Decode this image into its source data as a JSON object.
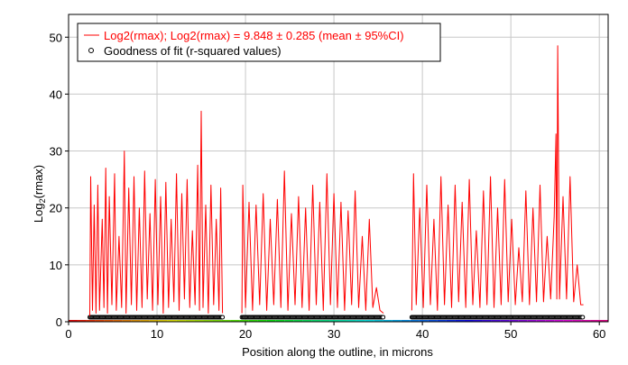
{
  "chart_data": {
    "type": "line",
    "xlabel": "Position along the outline, in microns",
    "ylabel_main": "Log",
    "ylabel_sub": "2",
    "ylabel_tail": "(rmax)",
    "xlim": [
      0,
      61
    ],
    "ylim": [
      0,
      54
    ],
    "xticks": [
      0,
      10,
      20,
      30,
      40,
      50,
      60
    ],
    "yticks": [
      0,
      10,
      20,
      30,
      40,
      50
    ],
    "grid": true,
    "legend_position": "top-left",
    "legend": [
      {
        "label": "Log2(rmax); Log2(rmax) = 9.848 ± 0.285 (mean ± 95%CI)",
        "marker": "line",
        "color": "#ff0000"
      },
      {
        "label": "Goodness of fit (r-squared values)",
        "marker": "open-circle",
        "color": "#000000"
      }
    ],
    "segments": [
      [
        2.4,
        17.4
      ],
      [
        19.6,
        35.6
      ],
      [
        38.8,
        58.2
      ]
    ],
    "gof_value": 0.8,
    "series": [
      {
        "name": "Log2(rmax); Log2(rmax) = 9.848 ± 0.285 (mean ± 95%CI)",
        "color": "#ff0000",
        "points": [
          [
            2.4,
            1.0
          ],
          [
            2.5,
            25.5
          ],
          [
            2.7,
            2.0
          ],
          [
            2.9,
            20.5
          ],
          [
            3.1,
            1.5
          ],
          [
            3.3,
            24.0
          ],
          [
            3.5,
            2.0
          ],
          [
            3.8,
            18.0
          ],
          [
            4.0,
            2.5
          ],
          [
            4.2,
            27.0
          ],
          [
            4.4,
            1.5
          ],
          [
            4.6,
            22.0
          ],
          [
            4.9,
            3.0
          ],
          [
            5.2,
            26.0
          ],
          [
            5.4,
            2.0
          ],
          [
            5.7,
            15.0
          ],
          [
            6.0,
            2.5
          ],
          [
            6.3,
            30.0
          ],
          [
            6.5,
            1.5
          ],
          [
            6.8,
            23.5
          ],
          [
            7.1,
            3.0
          ],
          [
            7.4,
            25.5
          ],
          [
            7.7,
            2.0
          ],
          [
            8.0,
            20.0
          ],
          [
            8.3,
            2.5
          ],
          [
            8.6,
            26.5
          ],
          [
            8.9,
            4.0
          ],
          [
            9.2,
            19.0
          ],
          [
            9.5,
            2.0
          ],
          [
            9.8,
            25.0
          ],
          [
            10.1,
            3.0
          ],
          [
            10.4,
            22.0
          ],
          [
            10.7,
            1.5
          ],
          [
            11.0,
            24.5
          ],
          [
            11.3,
            2.5
          ],
          [
            11.6,
            18.0
          ],
          [
            11.9,
            3.5
          ],
          [
            12.2,
            26.0
          ],
          [
            12.5,
            2.0
          ],
          [
            12.8,
            22.5
          ],
          [
            13.1,
            4.0
          ],
          [
            13.4,
            25.0
          ],
          [
            13.7,
            2.5
          ],
          [
            14.0,
            16.0
          ],
          [
            14.3,
            3.0
          ],
          [
            14.6,
            27.5
          ],
          [
            14.8,
            2.0
          ],
          [
            15.0,
            37.0
          ],
          [
            15.2,
            2.5
          ],
          [
            15.5,
            20.5
          ],
          [
            15.8,
            1.5
          ],
          [
            16.1,
            24.0
          ],
          [
            16.4,
            3.0
          ],
          [
            16.7,
            18.0
          ],
          [
            17.0,
            2.0
          ],
          [
            17.2,
            23.5
          ],
          [
            17.4,
            1.5
          ],
          [
            19.6,
            1.5
          ],
          [
            19.7,
            24.0
          ],
          [
            20.0,
            2.5
          ],
          [
            20.4,
            21.0
          ],
          [
            20.8,
            2.0
          ],
          [
            21.2,
            20.5
          ],
          [
            21.6,
            3.0
          ],
          [
            22.0,
            22.5
          ],
          [
            22.4,
            2.0
          ],
          [
            22.8,
            18.0
          ],
          [
            23.2,
            3.0
          ],
          [
            23.6,
            21.5
          ],
          [
            24.0,
            2.5
          ],
          [
            24.4,
            26.5
          ],
          [
            24.8,
            2.0
          ],
          [
            25.2,
            19.0
          ],
          [
            25.6,
            3.0
          ],
          [
            26.0,
            22.0
          ],
          [
            26.4,
            2.5
          ],
          [
            26.8,
            20.0
          ],
          [
            27.2,
            2.0
          ],
          [
            27.6,
            24.0
          ],
          [
            28.0,
            3.0
          ],
          [
            28.4,
            21.0
          ],
          [
            28.8,
            2.0
          ],
          [
            29.2,
            26.0
          ],
          [
            29.6,
            3.0
          ],
          [
            30.0,
            22.5
          ],
          [
            30.4,
            2.5
          ],
          [
            30.8,
            21.0
          ],
          [
            31.2,
            2.0
          ],
          [
            31.6,
            19.5
          ],
          [
            32.0,
            3.0
          ],
          [
            32.4,
            23.0
          ],
          [
            32.8,
            2.5
          ],
          [
            33.2,
            15.0
          ],
          [
            33.6,
            2.0
          ],
          [
            34.0,
            18.0
          ],
          [
            34.4,
            2.5
          ],
          [
            34.8,
            6.0
          ],
          [
            35.2,
            2.0
          ],
          [
            35.6,
            1.5
          ],
          [
            38.8,
            2.0
          ],
          [
            39.0,
            26.0
          ],
          [
            39.3,
            3.0
          ],
          [
            39.7,
            20.0
          ],
          [
            40.1,
            2.5
          ],
          [
            40.5,
            24.0
          ],
          [
            40.9,
            3.0
          ],
          [
            41.3,
            18.0
          ],
          [
            41.7,
            2.0
          ],
          [
            42.1,
            25.5
          ],
          [
            42.5,
            3.0
          ],
          [
            42.9,
            20.5
          ],
          [
            43.3,
            2.5
          ],
          [
            43.7,
            24.0
          ],
          [
            44.1,
            3.5
          ],
          [
            44.5,
            21.0
          ],
          [
            44.9,
            2.5
          ],
          [
            45.3,
            25.0
          ],
          [
            45.7,
            3.0
          ],
          [
            46.1,
            16.0
          ],
          [
            46.5,
            2.5
          ],
          [
            46.9,
            23.0
          ],
          [
            47.3,
            3.0
          ],
          [
            47.7,
            25.5
          ],
          [
            48.1,
            2.5
          ],
          [
            48.5,
            20.0
          ],
          [
            48.9,
            3.0
          ],
          [
            49.3,
            25.0
          ],
          [
            49.7,
            3.5
          ],
          [
            50.1,
            18.0
          ],
          [
            50.5,
            3.0
          ],
          [
            50.9,
            13.0
          ],
          [
            51.3,
            3.5
          ],
          [
            51.7,
            23.0
          ],
          [
            52.1,
            3.0
          ],
          [
            52.5,
            20.0
          ],
          [
            52.9,
            3.5
          ],
          [
            53.3,
            24.0
          ],
          [
            53.7,
            3.5
          ],
          [
            54.1,
            15.0
          ],
          [
            54.5,
            4.0
          ],
          [
            54.9,
            18.5
          ],
          [
            55.1,
            33.0
          ],
          [
            55.2,
            4.0
          ],
          [
            55.3,
            48.5
          ],
          [
            55.5,
            4.0
          ],
          [
            55.9,
            22.0
          ],
          [
            56.3,
            4.0
          ],
          [
            56.7,
            25.5
          ],
          [
            57.1,
            3.5
          ],
          [
            57.5,
            10.0
          ],
          [
            57.9,
            3.0
          ],
          [
            58.2,
            3.0
          ]
        ]
      }
    ]
  }
}
